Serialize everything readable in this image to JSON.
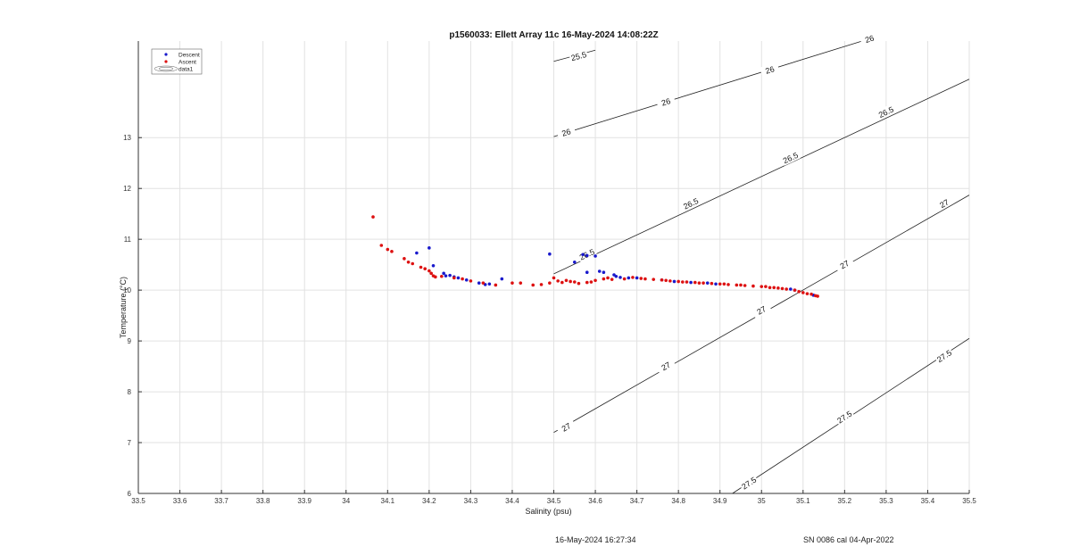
{
  "chart_data": {
    "type": "scatter",
    "title": "p1560033: Ellett Array 11c 16-May-2024 14:08:22Z",
    "xlabel": "Salinity (psu)",
    "ylabel": "Temperature (°C)",
    "xlim": [
      33.5,
      35.5
    ],
    "ylim": [
      6,
      14.9
    ],
    "x_ticks": [
      "33.5",
      "33.6",
      "33.7",
      "33.8",
      "33.9",
      "34",
      "34.1",
      "34.2",
      "34.3",
      "34.4",
      "34.5",
      "34.6",
      "34.7",
      "34.8",
      "34.9",
      "35",
      "35.1",
      "35.2",
      "35.3",
      "35.4",
      "35.5"
    ],
    "y_ticks": [
      "6",
      "7",
      "8",
      "9",
      "10",
      "11",
      "12",
      "13"
    ],
    "grid": true,
    "legend_position": "top-left",
    "legend": [
      "Descent",
      "Ascent",
      "data1"
    ],
    "colors": {
      "descent": "#1a1acc",
      "ascent": "#dd1111",
      "contour": "#222222",
      "grid": "#e2e2e2"
    },
    "series": [
      {
        "name": "Descent",
        "marker": "dot",
        "points": [
          [
            34.17,
            10.73
          ],
          [
            34.2,
            10.83
          ],
          [
            34.21,
            10.48
          ],
          [
            34.235,
            10.33
          ],
          [
            34.24,
            10.28
          ],
          [
            34.25,
            10.29
          ],
          [
            34.26,
            10.26
          ],
          [
            34.27,
            10.24
          ],
          [
            34.29,
            10.2
          ],
          [
            34.32,
            10.14
          ],
          [
            34.335,
            10.11
          ],
          [
            34.345,
            10.12
          ],
          [
            34.375,
            10.22
          ],
          [
            34.49,
            10.71
          ],
          [
            34.55,
            10.55
          ],
          [
            34.57,
            10.7
          ],
          [
            34.58,
            10.68
          ],
          [
            34.6,
            10.67
          ],
          [
            34.58,
            10.35
          ],
          [
            34.61,
            10.37
          ],
          [
            34.62,
            10.35
          ],
          [
            34.645,
            10.3
          ],
          [
            34.65,
            10.27
          ],
          [
            34.66,
            10.25
          ],
          [
            34.68,
            10.24
          ],
          [
            34.7,
            10.24
          ],
          [
            34.76,
            10.2
          ],
          [
            34.79,
            10.17
          ],
          [
            34.83,
            10.15
          ],
          [
            34.87,
            10.14
          ],
          [
            34.89,
            10.12
          ],
          [
            35.07,
            10.02
          ],
          [
            35.08,
            10.0
          ],
          [
            35.125,
            9.9
          ]
        ]
      },
      {
        "name": "Ascent",
        "marker": "dot",
        "points": [
          [
            34.065,
            11.44
          ],
          [
            34.085,
            10.88
          ],
          [
            34.1,
            10.8
          ],
          [
            34.11,
            10.76
          ],
          [
            34.14,
            10.62
          ],
          [
            34.15,
            10.55
          ],
          [
            34.16,
            10.52
          ],
          [
            34.18,
            10.45
          ],
          [
            34.19,
            10.42
          ],
          [
            34.2,
            10.38
          ],
          [
            34.205,
            10.33
          ],
          [
            34.21,
            10.28
          ],
          [
            34.215,
            10.26
          ],
          [
            34.23,
            10.27
          ],
          [
            34.26,
            10.24
          ],
          [
            34.28,
            10.22
          ],
          [
            34.3,
            10.18
          ],
          [
            34.33,
            10.14
          ],
          [
            34.36,
            10.1
          ],
          [
            34.4,
            10.14
          ],
          [
            34.42,
            10.14
          ],
          [
            34.45,
            10.1
          ],
          [
            34.47,
            10.11
          ],
          [
            34.49,
            10.14
          ],
          [
            34.5,
            10.24
          ],
          [
            34.51,
            10.18
          ],
          [
            34.52,
            10.15
          ],
          [
            34.53,
            10.19
          ],
          [
            34.54,
            10.17
          ],
          [
            34.55,
            10.16
          ],
          [
            34.56,
            10.13
          ],
          [
            34.58,
            10.15
          ],
          [
            34.59,
            10.16
          ],
          [
            34.6,
            10.19
          ],
          [
            34.62,
            10.22
          ],
          [
            34.63,
            10.24
          ],
          [
            34.64,
            10.21
          ],
          [
            34.67,
            10.22
          ],
          [
            34.69,
            10.25
          ],
          [
            34.71,
            10.23
          ],
          [
            34.72,
            10.22
          ],
          [
            34.74,
            10.21
          ],
          [
            34.76,
            10.2
          ],
          [
            34.77,
            10.19
          ],
          [
            34.78,
            10.18
          ],
          [
            34.8,
            10.17
          ],
          [
            34.81,
            10.16
          ],
          [
            34.82,
            10.16
          ],
          [
            34.84,
            10.15
          ],
          [
            34.85,
            10.14
          ],
          [
            34.86,
            10.14
          ],
          [
            34.88,
            10.13
          ],
          [
            34.9,
            10.12
          ],
          [
            34.91,
            10.12
          ],
          [
            34.92,
            10.11
          ],
          [
            34.94,
            10.1
          ],
          [
            34.95,
            10.1
          ],
          [
            34.96,
            10.09
          ],
          [
            34.98,
            10.08
          ],
          [
            35.0,
            10.07
          ],
          [
            35.01,
            10.07
          ],
          [
            35.02,
            10.05
          ],
          [
            35.03,
            10.05
          ],
          [
            35.04,
            10.04
          ],
          [
            35.05,
            10.03
          ],
          [
            35.06,
            10.02
          ],
          [
            35.08,
            10.0
          ],
          [
            35.09,
            9.97
          ],
          [
            35.1,
            9.95
          ],
          [
            35.11,
            9.93
          ],
          [
            35.12,
            9.92
          ],
          [
            35.13,
            9.89
          ],
          [
            35.135,
            9.88
          ]
        ]
      }
    ],
    "contours": [
      {
        "value": "25.5",
        "points": [
          [
            34.5,
            14.5
          ],
          [
            34.6,
            14.72
          ],
          [
            34.6,
            14.72
          ]
        ],
        "labels": [
          [
            34.56,
            14.6,
            "25.5"
          ]
        ]
      },
      {
        "value": "26",
        "points": [
          [
            34.5,
            13.02
          ],
          [
            35.25,
            14.92
          ]
        ],
        "labels": [
          [
            34.53,
            13.1,
            "26"
          ],
          [
            34.77,
            13.7,
            "26"
          ],
          [
            35.02,
            14.33,
            "26"
          ],
          [
            35.26,
            14.94,
            "26"
          ]
        ]
      },
      {
        "value": "26.5",
        "points": [
          [
            34.5,
            10.32
          ],
          [
            35.5,
            14.15
          ]
        ],
        "labels": [
          [
            34.58,
            10.7,
            "26.5"
          ],
          [
            34.83,
            11.7,
            "26.5"
          ],
          [
            35.07,
            12.6,
            "26.5"
          ],
          [
            35.3,
            13.5,
            "26.5"
          ]
        ]
      },
      {
        "value": "27",
        "points": [
          [
            34.5,
            7.2
          ],
          [
            35.5,
            11.87
          ]
        ],
        "labels": [
          [
            34.53,
            7.3,
            "27"
          ],
          [
            34.77,
            8.5,
            "27"
          ],
          [
            35.0,
            9.6,
            "27"
          ],
          [
            35.2,
            10.5,
            "27"
          ],
          [
            35.44,
            11.7,
            "27"
          ]
        ]
      },
      {
        "value": "27.5",
        "points": [
          [
            34.93,
            6.0
          ],
          [
            35.5,
            9.05
          ]
        ],
        "labels": [
          [
            34.97,
            6.2,
            "27.5"
          ],
          [
            35.2,
            7.5,
            "27.5"
          ],
          [
            35.44,
            8.7,
            "27.5"
          ]
        ]
      }
    ]
  },
  "footer": {
    "timestamp": "16-May-2024 16:27:34",
    "calibration": "SN 0086 cal 04-Apr-2022"
  }
}
